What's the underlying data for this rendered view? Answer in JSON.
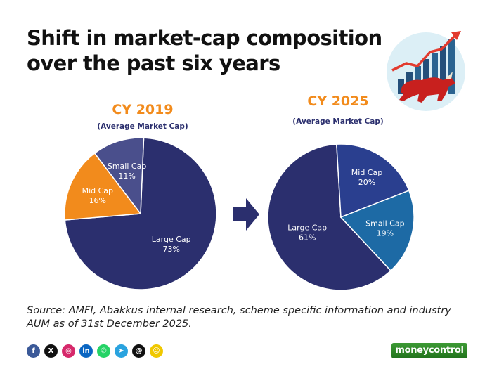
{
  "title_lines": [
    "Shift in market-cap composition",
    "over the past six years"
  ],
  "chart_data": [
    {
      "type": "pie",
      "title": "CY 2019",
      "subtitle": "(Average Market Cap)",
      "categories": [
        "Large Cap",
        "Mid Cap",
        "Small Cap"
      ],
      "values": [
        73,
        16,
        11
      ],
      "labels": [
        "73%",
        "16%",
        "11%"
      ],
      "colors": [
        "#2b2f6e",
        "#f28b1c",
        "#4a4f8c"
      ]
    },
    {
      "type": "pie",
      "title": "CY 2025",
      "subtitle": "(Average Market Cap)",
      "categories": [
        "Large Cap",
        "Mid Cap",
        "Small Cap"
      ],
      "values": [
        61,
        20,
        19
      ],
      "labels": [
        "61%",
        "20%",
        "19%"
      ],
      "colors": [
        "#2b2f6e",
        "#2a3f8f",
        "#1d6aa5"
      ]
    }
  ],
  "source": "Source: AMFI, Abakkus internal research, scheme specific information and industry AUM as of 31st December 2025.",
  "social_icons": [
    {
      "name": "facebook-icon",
      "glyph": "f",
      "color": "#3b5998"
    },
    {
      "name": "x-icon",
      "glyph": "X",
      "color": "#111111"
    },
    {
      "name": "instagram-icon",
      "glyph": "◎",
      "color": "#d6296b"
    },
    {
      "name": "linkedin-icon",
      "glyph": "in",
      "color": "#0a66c2"
    },
    {
      "name": "whatsapp-icon",
      "glyph": "✆",
      "color": "#25d366"
    },
    {
      "name": "telegram-icon",
      "glyph": "➤",
      "color": "#2aa3df"
    },
    {
      "name": "threads-icon",
      "glyph": "@",
      "color": "#111111"
    },
    {
      "name": "snapchat-icon",
      "glyph": "☺",
      "color": "#f0c800"
    }
  ],
  "brand": "moneycontrol"
}
